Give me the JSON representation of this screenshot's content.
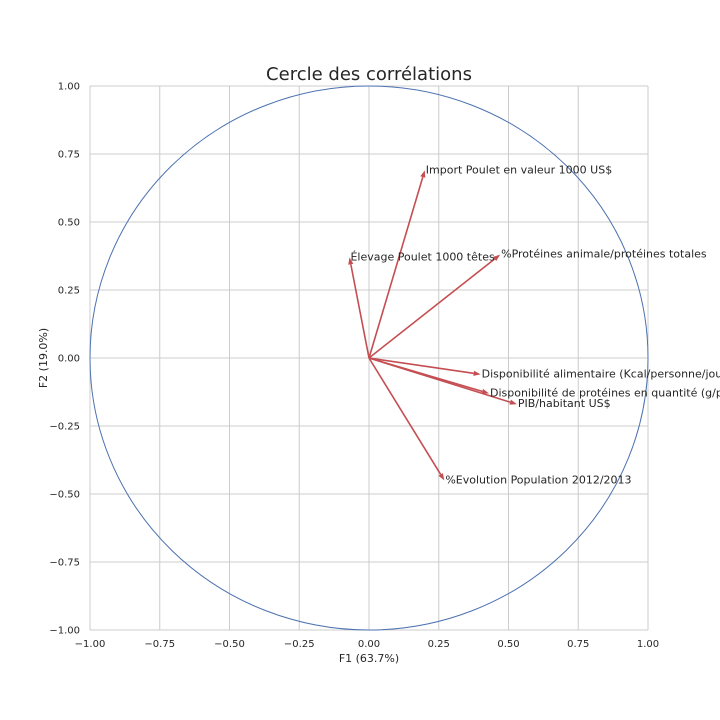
{
  "chart_data": {
    "type": "vector-plot",
    "title": "Cercle des corrélations",
    "xlabel": "F1 (63.7%)",
    "ylabel": "F2 (19.0%)",
    "xlim": [
      -1.0,
      1.0
    ],
    "ylim": [
      -1.0,
      1.0
    ],
    "grid": true,
    "xticks": [
      "−1.00",
      "−0.75",
      "−0.50",
      "−0.25",
      "0.00",
      "0.25",
      "0.50",
      "0.75",
      "1.00"
    ],
    "yticks": [
      "−1.00",
      "−0.75",
      "−0.50",
      "−0.25",
      "0.00",
      "0.25",
      "0.50",
      "0.75",
      "1.00"
    ],
    "circle_color": "#4c72b0",
    "arrow_color": "#c44e52",
    "vectors": [
      {
        "label": "Import Poulet en valeur 1000 US$",
        "x": 0.2,
        "y": 0.69
      },
      {
        "label": "%Protéines animale/protéines totales",
        "x": 0.47,
        "y": 0.38
      },
      {
        "label": "Élevage Poulet 1000 têtes",
        "x": -0.07,
        "y": 0.37
      },
      {
        "label": "Disponibilité alimentaire (Kcal/personne/jour)",
        "x": 0.4,
        "y": -0.06
      },
      {
        "label": "Disponibilité de protéines en quantité (g/personne/jour)",
        "x": 0.43,
        "y": -0.13
      },
      {
        "label": "PIB/habitant US$",
        "x": 0.53,
        "y": -0.17
      },
      {
        "label": "%Evolution Population 2012/2013",
        "x": 0.27,
        "y": -0.45
      }
    ]
  }
}
